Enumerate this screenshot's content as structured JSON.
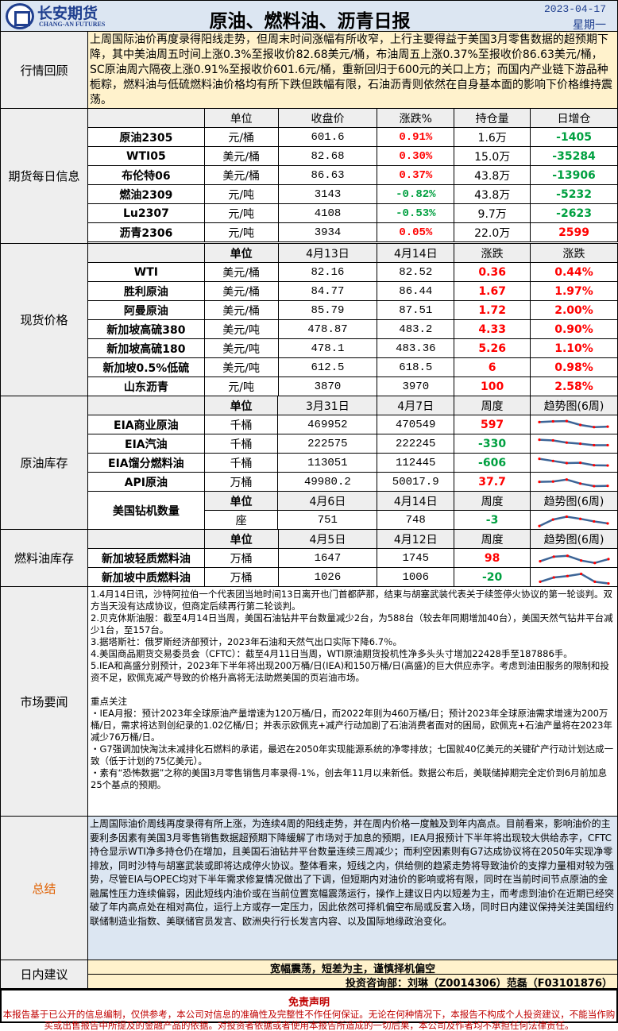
{
  "header": {
    "brand_cn": "长安期货",
    "brand_en": "CHANG-AN FUTURES",
    "title": "原油、燃料油、沥青日报",
    "date": "2023-04-17",
    "weekday": "星期一"
  },
  "review": {
    "label": "行情回顾",
    "text": "上周国际油价再度录得阳线走势，但周末时间涨幅有所收窄，上行主要得益于美国3月零售数据的超预期下降，其中美油周五时间上涨0.3%至报收价82.68美元/桶，布油周五上涨0.37%至报收价86.63美元/桶，SC原油周六隔夜上涨0.91%至报收价601.6元/桶，重新回归于600元的关口上方；而国内产业链下游品种栀粽，燃料油与低硫燃料油价格均有所下跌但跌幅有限，石油沥青则依然在自身基本面的影响下价格维持震荡。"
  },
  "futures": {
    "label": "期货每日信息",
    "headers": [
      "",
      "单位",
      "收盘价",
      "涨跌%",
      "持仓量",
      "日增仓"
    ],
    "rows": [
      [
        "原油2305",
        "元/桶",
        "601.6",
        "0.91%",
        "1.6万",
        "-1405"
      ],
      [
        "WTI05",
        "美元/桶",
        "82.68",
        "0.30%",
        "15.0万",
        "-35284"
      ],
      [
        "布伦特06",
        "美元/桶",
        "86.63",
        "0.37%",
        "43.8万",
        "-13906"
      ],
      [
        "燃油2309",
        "元/吨",
        "3143",
        "-0.82%",
        "43.8万",
        "-5232"
      ],
      [
        "Lu2307",
        "元/吨",
        "4108",
        "-0.53%",
        "9.7万",
        "-2623"
      ],
      [
        "沥青2306",
        "元/吨",
        "3934",
        "0.05%",
        "22.0万",
        "2599"
      ]
    ]
  },
  "spot": {
    "label": "现货价格",
    "headers": [
      "",
      "单位",
      "4月13日",
      "4月14日",
      "涨跌",
      "涨跌"
    ],
    "rows": [
      [
        "WTI",
        "美元/桶",
        "82.16",
        "82.52",
        "0.36",
        "0.44%"
      ],
      [
        "胜利原油",
        "美元/桶",
        "84.77",
        "86.44",
        "1.67",
        "1.97%"
      ],
      [
        "阿曼原油",
        "美元/桶",
        "85.79",
        "87.51",
        "1.72",
        "2.00%"
      ],
      [
        "新加坡高硫380",
        "美元/吨",
        "478.87",
        "483.2",
        "4.33",
        "0.90%"
      ],
      [
        "新加坡高硫180",
        "美元/吨",
        "478.1",
        "483.36",
        "5.26",
        "1.10%"
      ],
      [
        "新加坡0.5%低硫",
        "美元/吨",
        "612.5",
        "618.5",
        "6",
        "0.98%"
      ],
      [
        "山东沥青",
        "元/吨",
        "3870",
        "3970",
        "100",
        "2.58%"
      ]
    ]
  },
  "crude_inv": {
    "label": "原油库存",
    "headers": [
      "",
      "单位",
      "3月31日",
      "4月7日",
      "周度",
      "趋势图(6周)"
    ],
    "rows": [
      {
        "cells": [
          "EIA商业原油",
          "千桶",
          "469952",
          "470549",
          "597"
        ],
        "trend": [
          70,
          75,
          77,
          50,
          35,
          38
        ]
      },
      {
        "cells": [
          "EIA汽油",
          "千桶",
          "222575",
          "222245",
          "-330"
        ],
        "trend": [
          80,
          75,
          60,
          52,
          42,
          42
        ]
      },
      {
        "cells": [
          "EIA馏分燃料油",
          "千桶",
          "113051",
          "112445",
          "-606"
        ],
        "trend": [
          80,
          65,
          50,
          52,
          35,
          33
        ]
      },
      {
        "cells": [
          "API原油",
          "万桶",
          "49980.2",
          "50017.9",
          "37.7"
        ],
        "trend": [
          52,
          54,
          68,
          40,
          22,
          24
        ]
      }
    ],
    "rig": {
      "name": "美国钻机数量",
      "headers": [
        "单位",
        "4月6日",
        "4月14日",
        "周度",
        "趋势图(6周)"
      ],
      "cells": [
        "座",
        "751",
        "748",
        "-3"
      ],
      "trend": [
        10,
        55,
        75,
        60,
        42,
        28
      ]
    }
  },
  "fuel_inv": {
    "label": "燃料油库存",
    "headers": [
      "",
      "单位",
      "4月5日",
      "4月12日",
      "周度",
      "趋势图(6周)"
    ],
    "rows": [
      {
        "cells": [
          "新加坡轻质燃料油",
          "万桶",
          "1647",
          "1745",
          "98"
        ],
        "trend": [
          30,
          62,
          68,
          35,
          18,
          45
        ]
      },
      {
        "cells": [
          "新加坡中质燃料油",
          "万桶",
          "1026",
          "1006",
          "-20"
        ],
        "trend": [
          20,
          50,
          60,
          75,
          20,
          8
        ]
      }
    ]
  },
  "news": {
    "label": "市场要闻",
    "items": [
      "1.4月14日讯，沙特阿拉伯一个代表团当地时间13日离开也门首都萨那，结束与胡塞武装代表关于续签停火协议的第一轮谈判。双方当天没有达成协议，但商定后续再行第二轮谈判。",
      "2.贝克休斯油服：截至4月14日当周，美国石油钻井平台数量减少2台，为588台（较去年同期增加40台），美国天然气钻井平台减少1台，至157台。",
      "3.据塔斯社：俄罗斯经济部预计，2023年石油和天然气出口实际下降6.7％。",
      "4.美国商品期货交易委员会（CFTC）：截至4月11日当周，WTI原油期货投机性净多头头寸增加22428手至187886手。",
      "5.IEA和高盛分别预计，2023年下半年将出现200万桶/日(IEA)和150万桶/日(高盛)的巨大供应赤字。考虑到油田服务的限制和投资不足，欧佩克减产导致的价格升高将无法助燃美国的页岩油市场。"
    ],
    "focus_title": "重点关注",
    "focus": [
      "・IEA月报：预计2023年全球原油产量增速为120万桶/日，而2022年则为460万桶/日；预计2023年全球原油需求增速为200万桶/日，需求将达到创纪录的1.02亿桶/日；并表示欧佩克+减产行动加剧了石油消费者面对的困局，欧佩克+石油产量将在2023年减少76万桶/日。",
      "・G7强调加快淘汰未减排化石燃料的承诺，最迟在2050年实现能源系统的净零排放；七国就40亿美元的关键矿产行动计划达成一致（低于计划的75亿美元）。",
      "・素有“恐怖数据”之称的美国3月零售销售月率录得-1%，创去年11月以来新低。数据公布后，美联储掉期完全定价到6月前加息25个基点的预期。"
    ]
  },
  "summary": {
    "label": "总结",
    "text": "上周国际油价周线再度录得有所上涨，为连续4周的阳线走势，并在周内价格一度触及到年内高点。目前看来，影响油价的主要利多因素有美国3月零售销售数据超预期下降缓解了市场对于加息的预期，IEA月报预计下半年将出现较大供给赤字，CFTC持仓显示WTI净多持仓仍在增加，且美国石油钻井平台数量连续三周减少；而利空因素则有G7达成协议将在2050年实现净零排放，同时沙特与胡塞武装或即将达成停火协议。整体看来，短线之内，供给侧的趋紧走势将导致油价的支撑力量相对较为强势，尽管EIA与OPEC均对下半年需求修复情况做出了下调，但短期内对油价的影响或将有限，同时在当前时间节点原油的金融属性压力连续偏弱，因此短线内油价或在当前位置宽幅震荡运行，操作上建议日内以短差为主，而考虑到油价在近期已经突破了年内高点处在相对高位，运行上方或存一定压力，因此依然可择机偏空布局或反套入场，同时日内建议保持关注美国纽约联储制造业指数、美联储官员发言、欧洲央行行长发言内容、以及国际地缘政治变化。"
  },
  "advice": {
    "label": "日内建议",
    "text": "宽幅震荡，短差为主，谨慎择机偏空",
    "analysts": "投资咨询部：刘琳（Z0014306）范磊（F03101876）"
  },
  "disclaimer": {
    "title": "免责声明",
    "text": "本报告基于已公开的信息编制，仅供参考，本公司对信息的准确性及完整性不作任何保证。无论在何种情况下，本报告不构成个人投资建议，不能当作购买或出售报告中所提及的金融产品的依据。对投资者依据或者使用本报告所造成的一切后果，本公司及作者均不承担任何法律责任。"
  },
  "colors": {
    "up": "#ff0000",
    "down": "#00a040",
    "header_bg": "#dce6f2",
    "review_bg": "#fff2cc",
    "label_bg": "#eeeeee",
    "trend_line": "#3c6496",
    "trend_marker": "#ff0000"
  }
}
